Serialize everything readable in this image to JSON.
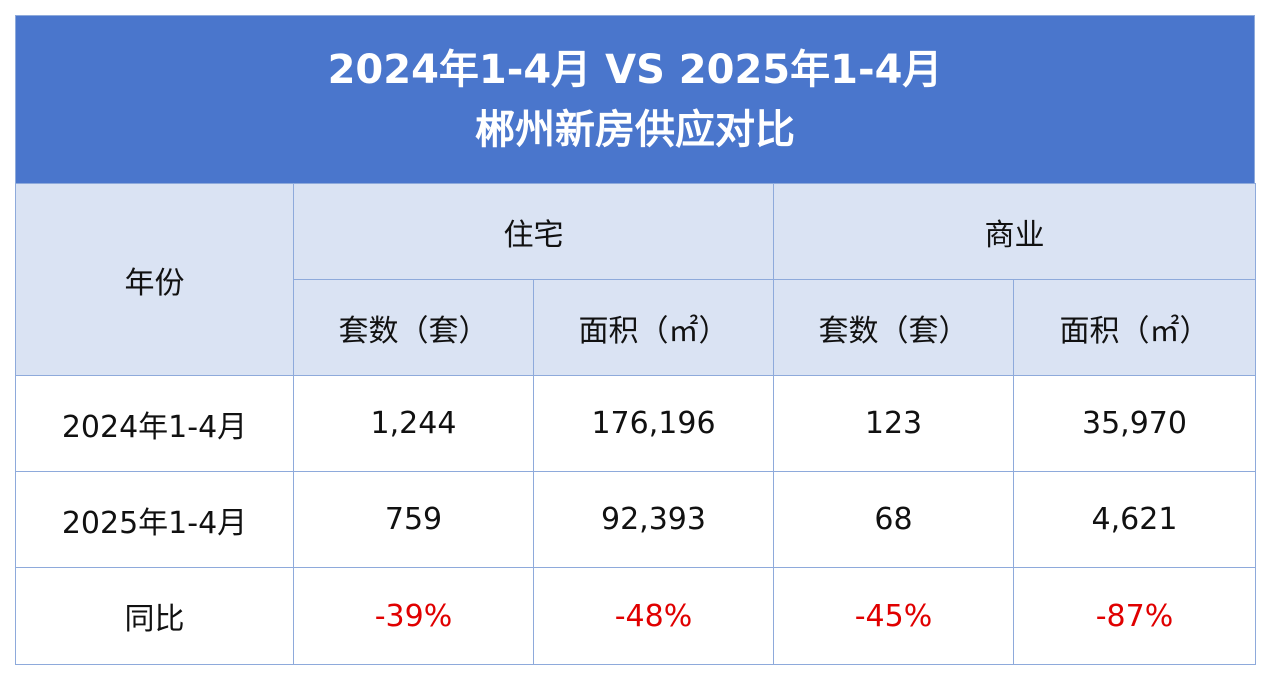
{
  "header": {
    "title_line1": "2024年1-4月 VS 2025年1-4月",
    "title_line2": "郴州新房供应对比"
  },
  "table": {
    "year_header": "年份",
    "groups": [
      {
        "label": "住宅",
        "subcolumns": [
          "套数（套）",
          "面积（㎡）"
        ]
      },
      {
        "label": "商业",
        "subcolumns": [
          "套数（套）",
          "面积（㎡）"
        ]
      }
    ],
    "rows": [
      [
        "2024年1-4月",
        "1,244",
        "176,196",
        "123",
        "35,970"
      ],
      [
        "2025年1-4月",
        "759",
        "92,393",
        "68",
        "4,621"
      ],
      [
        "同比",
        "-39%",
        "-48%",
        "-45%",
        "-87%"
      ]
    ]
  }
}
